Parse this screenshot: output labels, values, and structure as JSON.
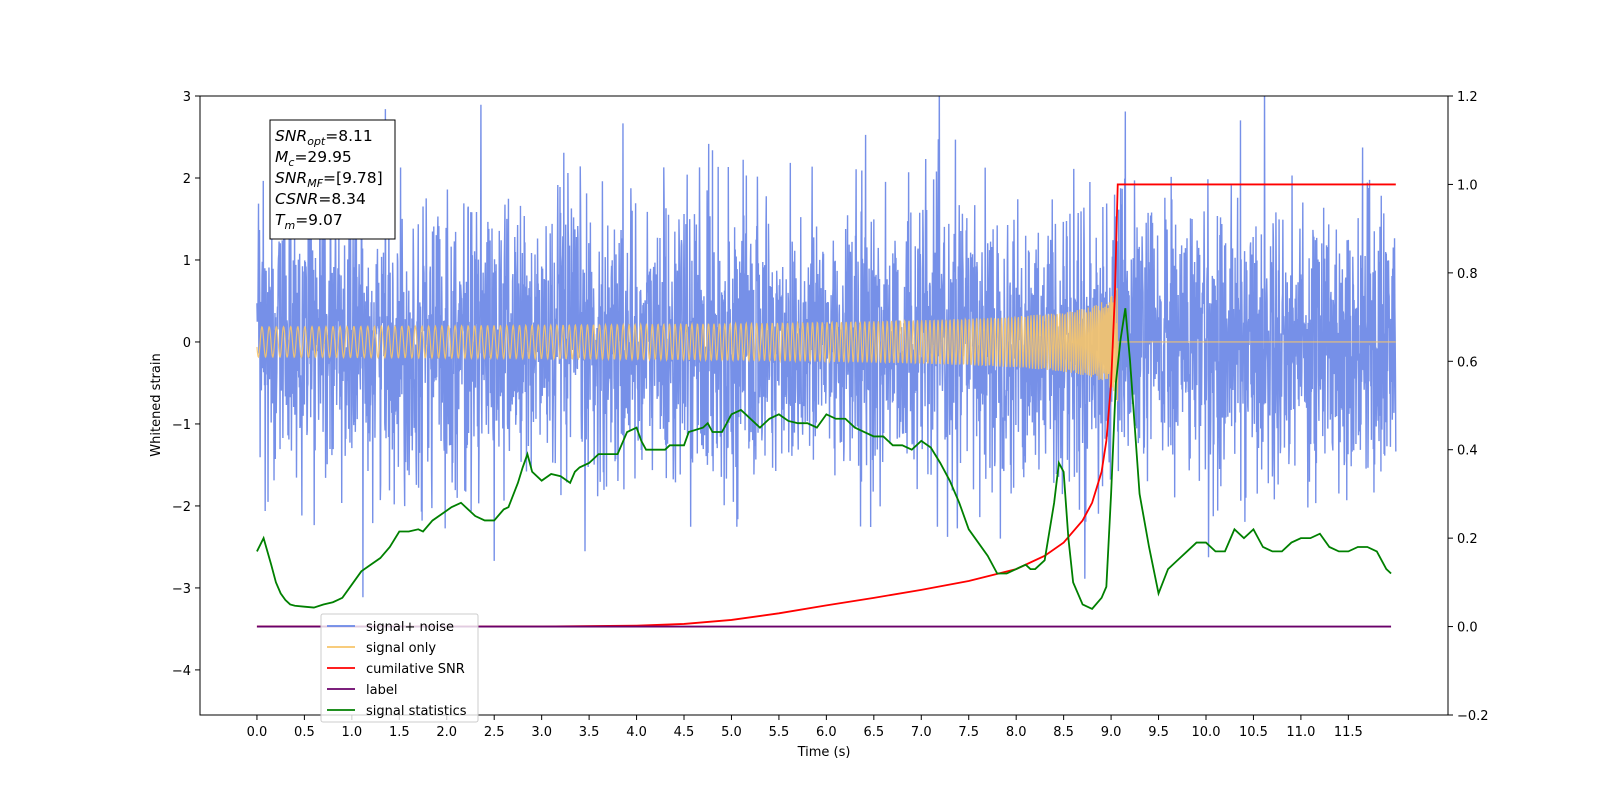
{
  "chart_data": {
    "type": "line",
    "xlabel": "Time (s)",
    "ylabel": "Whitened strain",
    "xlim": [
      -0.6,
      12.55
    ],
    "ylim": [
      -4.55,
      3.0
    ],
    "y2lim": [
      -0.2,
      1.2
    ],
    "x_ticks": [
      "0.0",
      "0.5",
      "1.0",
      "1.5",
      "2.0",
      "2.5",
      "3.0",
      "3.5",
      "4.0",
      "4.5",
      "5.0",
      "5.5",
      "6.0",
      "6.5",
      "7.0",
      "7.5",
      "8.0",
      "8.5",
      "9.0",
      "9.5",
      "10.0",
      "10.5",
      "11.0",
      "11.5"
    ],
    "y_ticks": [
      "3",
      "2",
      "1",
      "0",
      "−1",
      "−2",
      "−3",
      "−4"
    ],
    "y2_ticks": [
      "1.2",
      "1.0",
      "0.8",
      "0.6",
      "0.4",
      "0.2",
      "0.0",
      "−0.2"
    ],
    "info_box": [
      {
        "sym": "SNR",
        "sub": "opt",
        "value": "=8.11"
      },
      {
        "sym": "M",
        "sub": "c",
        "value": "=29.95"
      },
      {
        "sym": "SNR",
        "sub": "MF",
        "value": "=[9.78]"
      },
      {
        "sym": "CSNR",
        "sub": "",
        "value": "=8.34"
      },
      {
        "sym": "T",
        "sub": "m",
        "value": "=9.07"
      }
    ],
    "legend": [
      {
        "label": "signal+ noise",
        "color": "#6a87e6"
      },
      {
        "label": "signal only",
        "color": "#f7c56a"
      },
      {
        "label": "cumilative SNR",
        "color": "#ff0000"
      },
      {
        "label": "label",
        "color": "#6a006a"
      },
      {
        "label": "signal statistics",
        "color": "#008000"
      }
    ],
    "series": [
      {
        "name": "signal+ noise",
        "axis": "left",
        "color": "#6a87e6",
        "noise_std": 0.85,
        "x_range": [
          0.0,
          12.0
        ]
      },
      {
        "name": "signal only",
        "axis": "left",
        "color": "#f7c56a",
        "merger_time": 9.07,
        "peak_amplitude": 0.85
      },
      {
        "name": "cumilative SNR",
        "axis": "right",
        "x": [
          0.0,
          3.0,
          4.0,
          4.5,
          5.0,
          5.5,
          6.0,
          6.5,
          7.0,
          7.5,
          8.0,
          8.3,
          8.5,
          8.7,
          8.8,
          8.9,
          8.95,
          9.0,
          9.04,
          9.07,
          9.1,
          11.0,
          12.0
        ],
        "y": [
          0.0,
          0.0,
          0.002,
          0.006,
          0.015,
          0.03,
          0.048,
          0.065,
          0.083,
          0.103,
          0.13,
          0.16,
          0.19,
          0.24,
          0.28,
          0.35,
          0.42,
          0.55,
          0.75,
          1.0,
          1.0,
          1.0,
          1.0
        ]
      },
      {
        "name": "label",
        "axis": "right",
        "color": "#6a006a",
        "x": [
          0.0,
          11.95
        ],
        "y": [
          0.0,
          0.0
        ]
      },
      {
        "name": "signal statistics",
        "axis": "right",
        "color": "#008000",
        "x": [
          0.0,
          0.07,
          0.15,
          0.2,
          0.25,
          0.3,
          0.35,
          0.4,
          0.5,
          0.6,
          0.7,
          0.8,
          0.85,
          0.9,
          1.0,
          1.1,
          1.2,
          1.3,
          1.4,
          1.5,
          1.6,
          1.7,
          1.75,
          1.85,
          1.95,
          2.05,
          2.15,
          2.3,
          2.4,
          2.5,
          2.6,
          2.65,
          2.75,
          2.8,
          2.85,
          2.9,
          3.0,
          3.1,
          3.2,
          3.3,
          3.35,
          3.4,
          3.5,
          3.6,
          3.7,
          3.8,
          3.9,
          4.0,
          4.05,
          4.1,
          4.2,
          4.3,
          4.35,
          4.5,
          4.55,
          4.7,
          4.75,
          4.8,
          4.9,
          5.0,
          5.1,
          5.15,
          5.3,
          5.4,
          5.5,
          5.6,
          5.7,
          5.8,
          5.9,
          6.0,
          6.1,
          6.2,
          6.3,
          6.4,
          6.5,
          6.6,
          6.7,
          6.8,
          6.9,
          7.0,
          7.1,
          7.2,
          7.3,
          7.4,
          7.5,
          7.6,
          7.7,
          7.8,
          7.9,
          8.0,
          8.1,
          8.15,
          8.2,
          8.3,
          8.4,
          8.45,
          8.5,
          8.55,
          8.6,
          8.7,
          8.8,
          8.9,
          8.95,
          9.0,
          9.05,
          9.1,
          9.15,
          9.2,
          9.3,
          9.4,
          9.5,
          9.6,
          9.7,
          9.8,
          9.9,
          10.0,
          10.1,
          10.2,
          10.3,
          10.4,
          10.5,
          10.6,
          10.7,
          10.8,
          10.9,
          11.0,
          11.1,
          11.2,
          11.3,
          11.4,
          11.5,
          11.6,
          11.7,
          11.8,
          11.9,
          11.95
        ],
        "y": [
          0.17,
          0.2,
          0.14,
          0.1,
          0.075,
          0.06,
          0.05,
          0.047,
          0.045,
          0.043,
          0.05,
          0.055,
          0.06,
          0.065,
          0.095,
          0.125,
          0.14,
          0.155,
          0.18,
          0.215,
          0.215,
          0.22,
          0.215,
          0.24,
          0.255,
          0.27,
          0.28,
          0.25,
          0.24,
          0.24,
          0.265,
          0.27,
          0.325,
          0.36,
          0.39,
          0.35,
          0.33,
          0.345,
          0.34,
          0.325,
          0.35,
          0.36,
          0.37,
          0.39,
          0.39,
          0.39,
          0.44,
          0.45,
          0.42,
          0.4,
          0.4,
          0.4,
          0.41,
          0.41,
          0.44,
          0.45,
          0.46,
          0.44,
          0.44,
          0.48,
          0.49,
          0.48,
          0.45,
          0.47,
          0.48,
          0.465,
          0.46,
          0.46,
          0.45,
          0.48,
          0.47,
          0.47,
          0.45,
          0.44,
          0.43,
          0.43,
          0.41,
          0.41,
          0.4,
          0.42,
          0.405,
          0.37,
          0.33,
          0.28,
          0.22,
          0.19,
          0.16,
          0.12,
          0.12,
          0.13,
          0.14,
          0.13,
          0.13,
          0.15,
          0.28,
          0.37,
          0.35,
          0.2,
          0.1,
          0.05,
          0.04,
          0.065,
          0.09,
          0.3,
          0.55,
          0.65,
          0.72,
          0.6,
          0.3,
          0.18,
          0.075,
          0.13,
          0.15,
          0.17,
          0.19,
          0.19,
          0.17,
          0.17,
          0.22,
          0.2,
          0.22,
          0.18,
          0.17,
          0.17,
          0.19,
          0.2,
          0.2,
          0.21,
          0.18,
          0.17,
          0.17,
          0.18,
          0.18,
          0.17,
          0.13,
          0.12
        ]
      }
    ]
  }
}
